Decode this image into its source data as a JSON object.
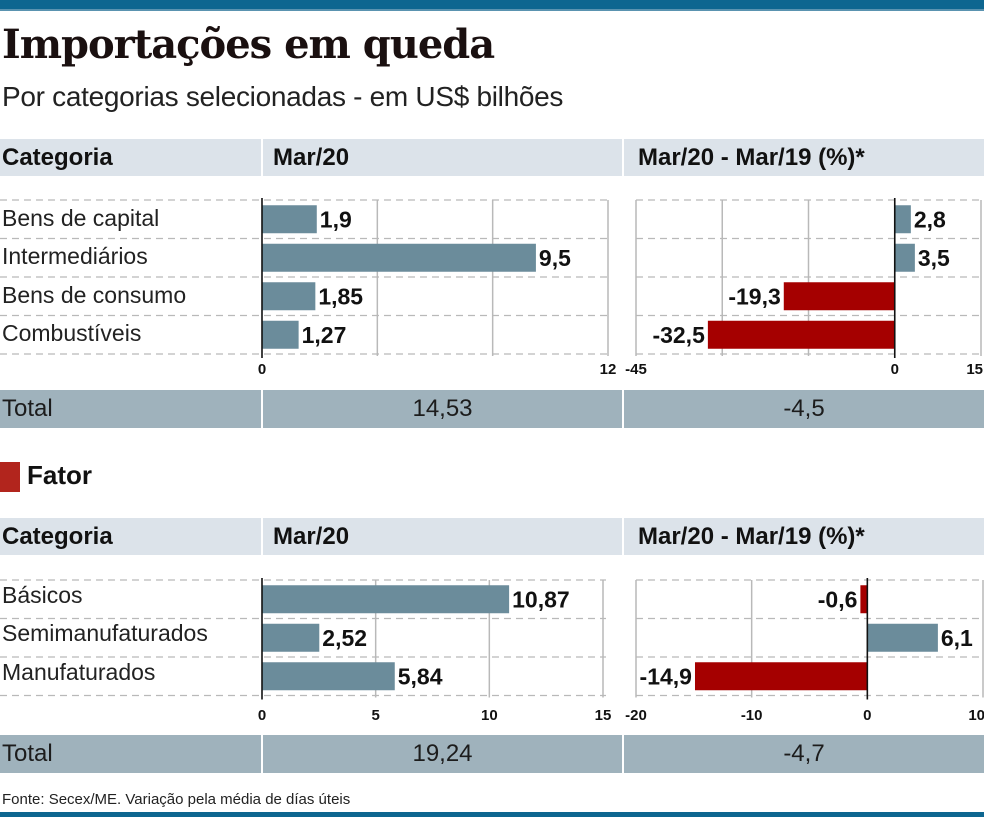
{
  "header": {
    "title": "Importações em queda",
    "subtitle": "Por categorias selecionadas - em US$ bilhões"
  },
  "colors": {
    "accent_bar": "#0d6690",
    "positive_bar": "#6b8c9b",
    "negative_bar": "#a50000",
    "header_band": "#dce3ea",
    "total_band": "#9fb2bc",
    "fator_marker": "#b2251d"
  },
  "table_headers": {
    "col1": "Categoria",
    "col2": "Mar/20",
    "col3": "Mar/20 - Mar/19 (%)*"
  },
  "section1": {
    "categories": [
      "Bens de capital",
      "Intermediários",
      "Bens de consumo",
      "Combustíveis"
    ],
    "total_label": "Total",
    "total_value": "14,53",
    "total_change": "-4,5"
  },
  "fator": {
    "label": "Fator"
  },
  "section2": {
    "categories": [
      "Básicos",
      "Semimanufaturados",
      "Manufaturados"
    ],
    "total_label": "Total",
    "total_value": "19,24",
    "total_change": "-4,7"
  },
  "footer": {
    "source": "Fonte: Secex/ME. Variação pela média de días úteis"
  },
  "chart_data": [
    {
      "type": "bar",
      "orientation": "horizontal",
      "id": "s1-value",
      "title": "Mar/20",
      "categories": [
        "Bens de capital",
        "Intermediários",
        "Bens de consumo",
        "Combustíveis"
      ],
      "values": [
        1.9,
        9.5,
        1.85,
        1.27
      ],
      "labels": [
        "1,9",
        "9,5",
        "1,85",
        "1,27"
      ],
      "xlim": [
        0,
        12
      ],
      "gridlines": [
        0,
        4,
        8,
        12
      ],
      "tick_labels": [
        {
          "v": 0,
          "t": "0"
        },
        {
          "v": 12,
          "t": "12"
        }
      ],
      "unit": "US$ bilhões"
    },
    {
      "type": "bar",
      "orientation": "horizontal",
      "id": "s1-change",
      "title": "Mar/20 - Mar/19 (%)*",
      "categories": [
        "Bens de capital",
        "Intermediários",
        "Bens de consumo",
        "Combustíveis"
      ],
      "values": [
        2.8,
        3.5,
        -19.3,
        -32.5
      ],
      "labels": [
        "2,8",
        "3,5",
        "-19,3",
        "-32,5"
      ],
      "xlim": [
        -45,
        15
      ],
      "gridlines": [
        -45,
        -30,
        -15,
        0,
        15
      ],
      "tick_labels": [
        {
          "v": -45,
          "t": "-45"
        },
        {
          "v": 0,
          "t": "0"
        },
        {
          "v": 15,
          "t": "15"
        }
      ],
      "unit": "%"
    },
    {
      "type": "bar",
      "orientation": "horizontal",
      "id": "s2-value",
      "title": "Mar/20",
      "categories": [
        "Básicos",
        "Semimanufaturados",
        "Manufaturados"
      ],
      "values": [
        10.87,
        2.52,
        5.84
      ],
      "labels": [
        "10,87",
        "2,52",
        "5,84"
      ],
      "xlim": [
        0,
        15
      ],
      "gridlines": [
        0,
        5,
        10,
        15
      ],
      "tick_labels": [
        {
          "v": 0,
          "t": "0"
        },
        {
          "v": 5,
          "t": "5"
        },
        {
          "v": 10,
          "t": "10"
        },
        {
          "v": 15,
          "t": "15"
        }
      ],
      "unit": "US$ bilhões"
    },
    {
      "type": "bar",
      "orientation": "horizontal",
      "id": "s2-change",
      "title": "Mar/20 - Mar/19 (%)*",
      "categories": [
        "Básicos",
        "Semimanufaturados",
        "Manufaturados"
      ],
      "values": [
        -0.6,
        6.1,
        -14.9
      ],
      "labels": [
        "-0,6",
        "6,1",
        "-14,9"
      ],
      "xlim": [
        -20,
        10
      ],
      "gridlines": [
        -20,
        -10,
        0,
        10
      ],
      "tick_labels": [
        {
          "v": -20,
          "t": "-20"
        },
        {
          "v": -10,
          "t": "-10"
        },
        {
          "v": 0,
          "t": "0"
        },
        {
          "v": 10,
          "t": "10"
        }
      ],
      "unit": "%"
    }
  ]
}
